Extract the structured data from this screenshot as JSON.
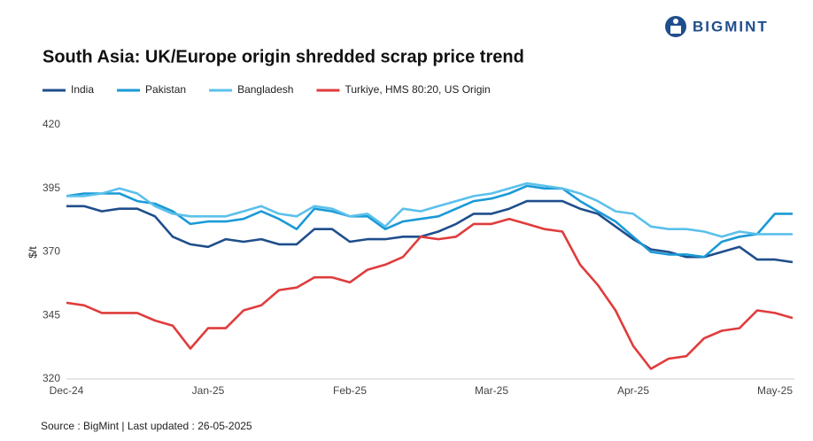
{
  "logo": "BIGMINT",
  "chart_data": {
    "type": "line",
    "title": "South Asia: UK/Europe origin shredded scrap price trend",
    "y_label": "$/t",
    "source": "Source : BigMint | Last updated : 26-05-2025",
    "categories": [
      "Dec-24",
      null,
      null,
      null,
      null,
      null,
      null,
      null,
      "Jan-25",
      null,
      null,
      null,
      null,
      null,
      null,
      null,
      "Feb-25",
      null,
      null,
      null,
      null,
      null,
      null,
      null,
      "Mar-25",
      null,
      null,
      null,
      null,
      null,
      null,
      null,
      "Apr-25",
      null,
      null,
      null,
      null,
      null,
      null,
      null,
      "May-25",
      null
    ],
    "ylim": [
      320,
      420
    ],
    "yticks": [
      320,
      345,
      370,
      395,
      420
    ],
    "grid": false,
    "series": [
      {
        "name": "India",
        "color": "#1f4e8c",
        "values": [
          388,
          388,
          386,
          387,
          387,
          384,
          376,
          373,
          372,
          375,
          374,
          375,
          373,
          373,
          379,
          379,
          374,
          375,
          375,
          376,
          376,
          378,
          381,
          385,
          385,
          387,
          390,
          390,
          390,
          387,
          385,
          380,
          375,
          371,
          370,
          368,
          368,
          370,
          372,
          367,
          367,
          366
        ]
      },
      {
        "name": "Pakistan",
        "color": "#1a9ad6",
        "values": [
          392,
          393,
          393,
          393,
          390,
          389,
          386,
          381,
          382,
          382,
          383,
          386,
          383,
          379,
          387,
          386,
          384,
          384,
          379,
          382,
          383,
          384,
          387,
          390,
          391,
          393,
          396,
          395,
          395,
          390,
          386,
          382,
          376,
          370,
          369,
          369,
          368,
          374,
          376,
          377,
          385,
          385
        ]
      },
      {
        "name": "Bangladesh",
        "color": "#5bc0eb",
        "values": [
          392,
          392,
          393,
          395,
          393,
          388,
          385,
          384,
          384,
          384,
          386,
          388,
          385,
          384,
          388,
          387,
          384,
          385,
          380,
          387,
          386,
          388,
          390,
          392,
          393,
          395,
          397,
          396,
          395,
          393,
          390,
          386,
          385,
          380,
          379,
          379,
          378,
          376,
          378,
          377,
          377,
          377
        ]
      },
      {
        "name": "Turkiye, HMS 80:20, US Origin",
        "color": "#e03c3c",
        "values": [
          350,
          349,
          346,
          346,
          346,
          343,
          341,
          332,
          340,
          340,
          347,
          349,
          355,
          356,
          360,
          360,
          358,
          363,
          365,
          368,
          376,
          375,
          376,
          381,
          381,
          383,
          381,
          379,
          378,
          365,
          357,
          347,
          333,
          324,
          328,
          329,
          336,
          339,
          340,
          347,
          346,
          344
        ]
      }
    ]
  }
}
